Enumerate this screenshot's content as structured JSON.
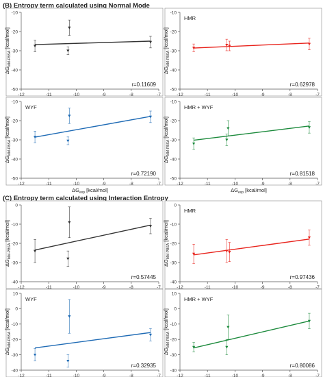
{
  "sections": [
    {
      "title": "(B) Entropy term calculated using Normal Mode"
    },
    {
      "title": "(C) Entropy term calculated using Interaction Entropy"
    }
  ],
  "ylabel": {
    "main": "ΔG",
    "sub": "MM-PBSA",
    "unit": " [kcal/mol]"
  },
  "xlabel": {
    "main": "ΔG",
    "sub": "exp",
    "unit": " [kcal/mol]"
  },
  "chart_data": [
    {
      "type": "scatter",
      "section": 0,
      "panel_label": "",
      "r_text": "r=0.11609",
      "color": "#333333",
      "xlim": [
        -12,
        -7
      ],
      "ylim": [
        -50,
        -10
      ],
      "xticks": [
        -12,
        -11,
        -10,
        -9,
        -8,
        -7
      ],
      "yticks": [
        -10,
        -20,
        -30,
        -40,
        -50
      ],
      "points": [
        {
          "x": -11.5,
          "y": -27.5,
          "e": 3
        },
        {
          "x": -10.25,
          "y": -18,
          "e": 4
        },
        {
          "x": -10.3,
          "y": -30,
          "e": 2
        },
        {
          "x": -7.3,
          "y": -25.5,
          "e": 3
        }
      ],
      "fit": [
        [
          -11.5,
          -26.8
        ],
        [
          -7.3,
          -25.0
        ]
      ]
    },
    {
      "type": "scatter",
      "section": 0,
      "panel_label": "HMR",
      "r_text": "r=0.62978",
      "color": "#e8231c",
      "xlim": [
        -12,
        -7
      ],
      "ylim": [
        -50,
        -10
      ],
      "xticks": [
        -12,
        -11,
        -10,
        -9,
        -8,
        -7
      ],
      "yticks": [
        -10,
        -20,
        -30,
        -40,
        -50
      ],
      "points": [
        {
          "x": -11.5,
          "y": -28.5,
          "e": 2
        },
        {
          "x": -10.3,
          "y": -27,
          "e": 3
        },
        {
          "x": -10.2,
          "y": -27.5,
          "e": 2.5
        },
        {
          "x": -7.3,
          "y": -26.5,
          "e": 3
        }
      ],
      "fit": [
        [
          -11.5,
          -28.6
        ],
        [
          -7.3,
          -26.0
        ]
      ]
    },
    {
      "type": "scatter",
      "section": 0,
      "panel_label": "WYF",
      "r_text": "r=0.72190",
      "color": "#1f6bb5",
      "xlim": [
        -12,
        -7
      ],
      "ylim": [
        -50,
        -10
      ],
      "xticks": [
        -12,
        -11,
        -10,
        -9,
        -8,
        -7
      ],
      "yticks": [
        -10,
        -20,
        -30,
        -40,
        -50
      ],
      "points": [
        {
          "x": -11.5,
          "y": -28.5,
          "e": 3
        },
        {
          "x": -10.3,
          "y": -30.5,
          "e": 2
        },
        {
          "x": -10.25,
          "y": -17.5,
          "e": 4
        },
        {
          "x": -7.3,
          "y": -18,
          "e": 3
        }
      ],
      "fit": [
        [
          -11.5,
          -28.6
        ],
        [
          -7.3,
          -17.8
        ]
      ]
    },
    {
      "type": "scatter",
      "section": 0,
      "panel_label": "HMR + WYF",
      "r_text": "r=0.81518",
      "color": "#1c8a3c",
      "xlim": [
        -12,
        -7
      ],
      "ylim": [
        -50,
        -10
      ],
      "xticks": [
        -12,
        -11,
        -10,
        -9,
        -8,
        -7
      ],
      "yticks": [
        -10,
        -20,
        -30,
        -40,
        -50
      ],
      "points": [
        {
          "x": -11.5,
          "y": -32,
          "e": 3
        },
        {
          "x": -10.3,
          "y": -30,
          "e": 3
        },
        {
          "x": -10.25,
          "y": -24,
          "e": 4
        },
        {
          "x": -7.3,
          "y": -23.5,
          "e": 3
        }
      ],
      "fit": [
        [
          -11.5,
          -30.2
        ],
        [
          -7.3,
          -22.8
        ]
      ]
    },
    {
      "type": "scatter",
      "section": 1,
      "panel_label": "",
      "r_text": "r=0.57445",
      "color": "#333333",
      "xlim": [
        -12,
        -7
      ],
      "ylim": [
        -40,
        0
      ],
      "xticks": [
        -12,
        -11,
        -10,
        -9,
        -8,
        -7
      ],
      "yticks": [
        0,
        -10,
        -20,
        -30,
        -40
      ],
      "points": [
        {
          "x": -11.5,
          "y": -24,
          "e": 6
        },
        {
          "x": -10.3,
          "y": -28,
          "e": 4
        },
        {
          "x": -10.25,
          "y": -9,
          "e": 8
        },
        {
          "x": -7.3,
          "y": -11,
          "e": 4
        }
      ],
      "fit": [
        [
          -11.5,
          -23.5
        ],
        [
          -7.3,
          -10.5
        ]
      ]
    },
    {
      "type": "scatter",
      "section": 1,
      "panel_label": "HMR",
      "r_text": "r=0.97436",
      "color": "#e8231c",
      "xlim": [
        -12,
        -7
      ],
      "ylim": [
        -40,
        0
      ],
      "xticks": [
        -12,
        -11,
        -10,
        -9,
        -8,
        -7
      ],
      "yticks": [
        0,
        -10,
        -20,
        -30,
        -40
      ],
      "points": [
        {
          "x": -11.5,
          "y": -25.5,
          "e": 5
        },
        {
          "x": -10.3,
          "y": -24,
          "e": 6
        },
        {
          "x": -10.2,
          "y": -24.5,
          "e": 5
        },
        {
          "x": -7.3,
          "y": -17,
          "e": 4
        }
      ],
      "fit": [
        [
          -11.5,
          -26.0
        ],
        [
          -7.3,
          -17.8
        ]
      ]
    },
    {
      "type": "scatter",
      "section": 1,
      "panel_label": "WYF",
      "r_text": "r=0.32935",
      "color": "#1f6bb5",
      "xlim": [
        -12,
        -7
      ],
      "ylim": [
        -40,
        10
      ],
      "xticks": [
        -12,
        -11,
        -10,
        -9,
        -8,
        -7
      ],
      "yticks": [
        10,
        0,
        -10,
        -20,
        -30,
        -40
      ],
      "points": [
        {
          "x": -11.5,
          "y": -30,
          "e": 4
        },
        {
          "x": -10.3,
          "y": -34,
          "e": 4
        },
        {
          "x": -10.25,
          "y": -5,
          "e": 11
        },
        {
          "x": -7.3,
          "y": -17,
          "e": 4
        }
      ],
      "fit": [
        [
          -11.5,
          -25.5
        ],
        [
          -7.3,
          -15.5
        ]
      ]
    },
    {
      "type": "scatter",
      "section": 1,
      "panel_label": "HMR + WYF",
      "r_text": "r=0.80086",
      "color": "#1c8a3c",
      "xlim": [
        -12,
        -7
      ],
      "ylim": [
        -40,
        10
      ],
      "xticks": [
        -12,
        -11,
        -10,
        -9,
        -8,
        -7
      ],
      "yticks": [
        10,
        0,
        -10,
        -20,
        -30,
        -40
      ],
      "points": [
        {
          "x": -11.5,
          "y": -25,
          "e": 3
        },
        {
          "x": -10.3,
          "y": -25,
          "e": 5
        },
        {
          "x": -10.25,
          "y": -12,
          "e": 8
        },
        {
          "x": -7.3,
          "y": -8,
          "e": 5
        }
      ],
      "fit": [
        [
          -11.5,
          -25.5
        ],
        [
          -7.3,
          -8.0
        ]
      ]
    }
  ]
}
